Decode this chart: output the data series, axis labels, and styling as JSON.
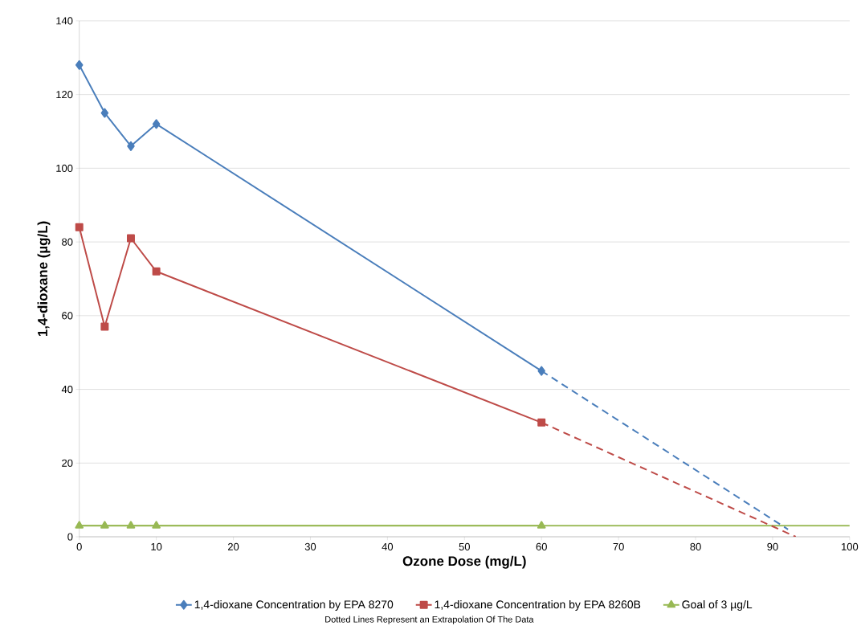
{
  "chart_data": {
    "type": "line",
    "xlabel": "Ozone Dose (mg/L)",
    "ylabel": "1,4-dioxane (µg/L)",
    "xlim": [
      0,
      100
    ],
    "xticks": [
      0,
      10,
      20,
      30,
      40,
      50,
      60,
      70,
      80,
      90,
      100
    ],
    "ylim": [
      0,
      140
    ],
    "yticks": [
      0,
      20,
      40,
      60,
      80,
      100,
      120,
      140
    ],
    "grid": "y",
    "legend": "bottom",
    "series": [
      {
        "name": "1,4-dioxane Concentration by EPA 8270",
        "color": "#4a7ebb",
        "marker": "diamond",
        "x": [
          0,
          3.3,
          6.7,
          10,
          60
        ],
        "values": [
          128,
          115,
          106,
          112,
          45
        ]
      },
      {
        "name": "1,4-dioxane Concentration by EPA 8260B",
        "color": "#be4b48",
        "marker": "square",
        "x": [
          0,
          3.3,
          6.7,
          10,
          60
        ],
        "values": [
          84,
          57,
          81,
          72,
          31
        ]
      },
      {
        "name": "Goal of 3 µg/L",
        "color": "#98b954",
        "marker": "triangle",
        "x": [
          0,
          3.3,
          6.7,
          10,
          60
        ],
        "values": [
          3,
          3,
          3,
          3,
          3
        ]
      },
      {
        "color": "#4a7ebb",
        "marker": "none",
        "line_style": "dashed",
        "x": [
          60,
          92
        ],
        "values": [
          45,
          2
        ]
      },
      {
        "color": "#be4b48",
        "marker": "none",
        "line_style": "dashed",
        "x": [
          60,
          93
        ],
        "values": [
          31,
          0
        ]
      }
    ],
    "ref_lines": [
      {
        "axis": "y",
        "value": 3,
        "color": "#98b954"
      }
    ],
    "annotations": [
      "Dotted Lines Represent an Extrapolation Of The Data"
    ]
  }
}
